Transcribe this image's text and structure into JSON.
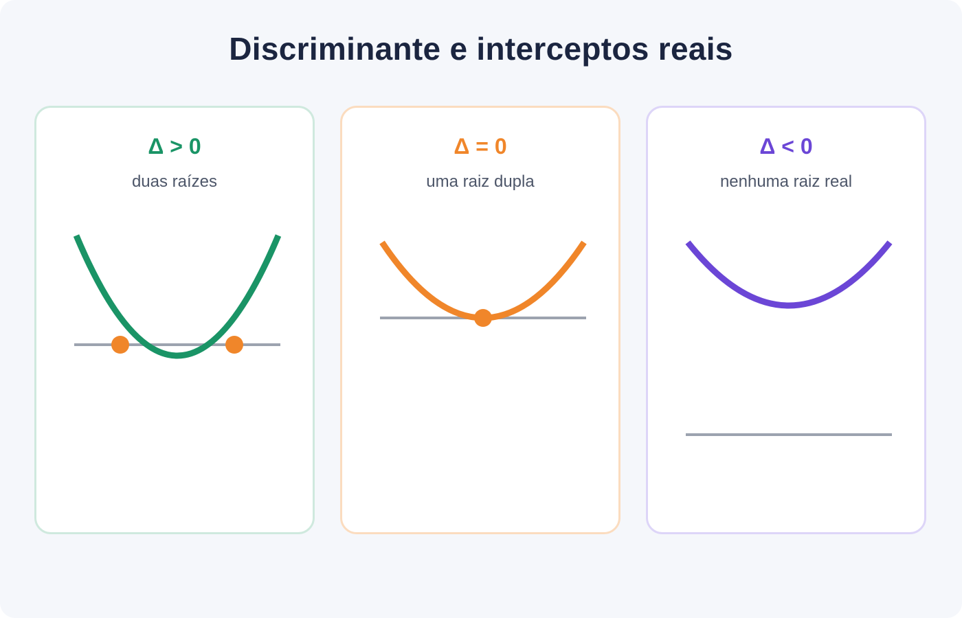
{
  "title": "Discriminante e interceptos reais",
  "colors": {
    "background": "#f5f7fb",
    "title": "#1b2540",
    "subtitle": "#4d5669",
    "axis": "#9ca3af",
    "root_marker": "#f0862a"
  },
  "cards": [
    {
      "heading": "Δ > 0",
      "subtitle": "duas raízes",
      "curve_color": "#1a9466",
      "border_color": "#cfe9de",
      "discriminant_sign": "positive",
      "real_roots": 2
    },
    {
      "heading": "Δ = 0",
      "subtitle": "uma raiz dupla",
      "curve_color": "#f0862a",
      "border_color": "#fbdcbf",
      "discriminant_sign": "zero",
      "real_roots": 1
    },
    {
      "heading": "Δ < 0",
      "subtitle": "nenhuma raiz real",
      "curve_color": "#6b46d6",
      "border_color": "#ddd5f8",
      "discriminant_sign": "negative",
      "real_roots": 0
    }
  ]
}
